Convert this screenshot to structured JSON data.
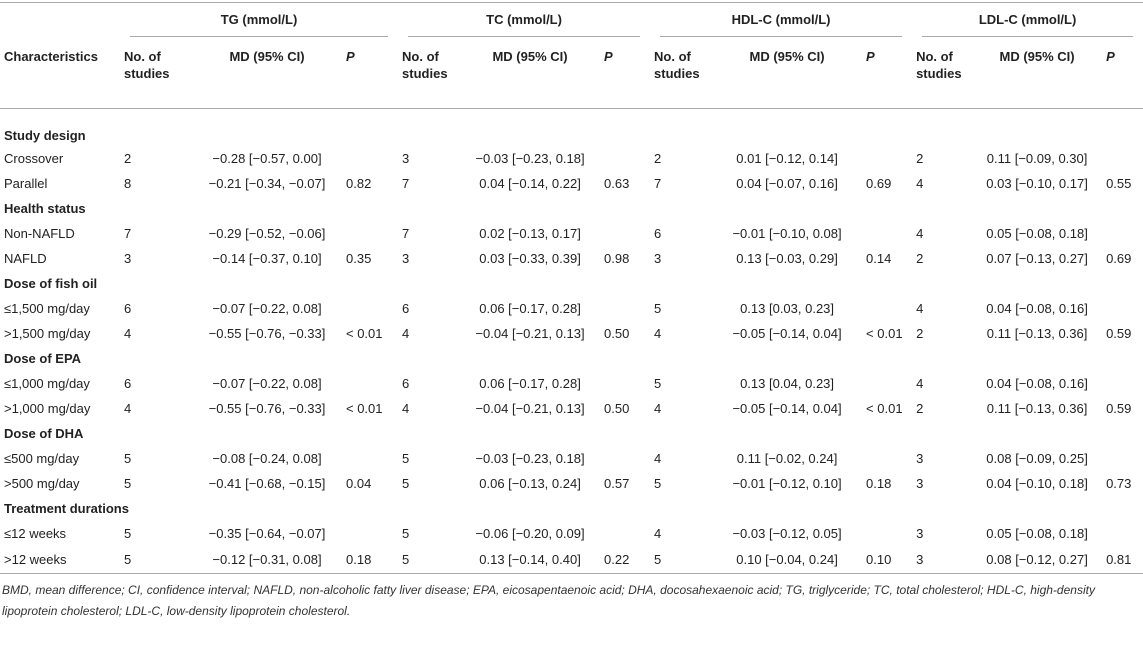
{
  "table": {
    "groups": [
      "TG (mmol/L)",
      "TC (mmol/L)",
      "HDL-C (mmol/L)",
      "LDL-C (mmol/L)"
    ],
    "columns": [
      "Characteristics",
      "No. of studies",
      "MD (95% CI)",
      "P"
    ],
    "sections": [
      {
        "title": "Study design",
        "rows": [
          {
            "label": "Crossover",
            "cells": [
              "2",
              "−0.28 [−0.57, 0.00]",
              null,
              "3",
              "−0.03 [−0.23, 0.18]",
              null,
              "2",
              "0.01 [−0.12, 0.14]",
              null,
              "2",
              "0.11 [−0.09, 0.30]",
              null
            ]
          },
          {
            "label": "Parallel",
            "cells": [
              "8",
              "−0.21 [−0.34, −0.07]",
              "0.82",
              "7",
              "0.04 [−0.14, 0.22]",
              "0.63",
              "7",
              "0.04 [−0.07, 0.16]",
              "0.69",
              "4",
              "0.03 [−0.10, 0.17]",
              "0.55"
            ]
          }
        ]
      },
      {
        "title": "Health status",
        "rows": [
          {
            "label": "Non-NAFLD",
            "cells": [
              "7",
              "−0.29 [−0.52, −0.06]",
              null,
              "7",
              "0.02 [−0.13, 0.17]",
              null,
              "6",
              "−0.01 [−0.10, 0.08]",
              null,
              "4",
              "0.05 [−0.08, 0.18]",
              null
            ]
          },
          {
            "label": "NAFLD",
            "cells": [
              "3",
              "−0.14 [−0.37, 0.10]",
              "0.35",
              "3",
              "0.03 [−0.33, 0.39]",
              "0.98",
              "3",
              "0.13 [−0.03, 0.29]",
              "0.14",
              "2",
              "0.07 [−0.13, 0.27]",
              "0.69"
            ]
          }
        ]
      },
      {
        "title": "Dose of fish oil",
        "rows": [
          {
            "label": "≤1,500 mg/day",
            "cells": [
              "6",
              "−0.07 [−0.22, 0.08]",
              null,
              "6",
              "0.06 [−0.17, 0.28]",
              null,
              "5",
              "0.13 [0.03, 0.23]",
              null,
              "4",
              "0.04 [−0.08, 0.16]",
              null
            ]
          },
          {
            "label": ">1,500 mg/day",
            "cells": [
              "4",
              "−0.55 [−0.76, −0.33]",
              "< 0.01",
              "4",
              "−0.04 [−0.21, 0.13]",
              "0.50",
              "4",
              "−0.05 [−0.14, 0.04]",
              "< 0.01",
              "2",
              "0.11 [−0.13, 0.36]",
              "0.59"
            ]
          }
        ]
      },
      {
        "title": "Dose of EPA",
        "rows": [
          {
            "label": "≤1,000 mg/day",
            "cells": [
              "6",
              "−0.07 [−0.22, 0.08]",
              null,
              "6",
              "0.06 [−0.17, 0.28]",
              null,
              "5",
              "0.13 [0.04, 0.23]",
              null,
              "4",
              "0.04 [−0.08, 0.16]",
              null
            ]
          },
          {
            "label": ">1,000 mg/day",
            "cells": [
              "4",
              "−0.55 [−0.76, −0.33]",
              "< 0.01",
              "4",
              "−0.04 [−0.21, 0.13]",
              "0.50",
              "4",
              "−0.05 [−0.14, 0.04]",
              "< 0.01",
              "2",
              "0.11 [−0.13, 0.36]",
              "0.59"
            ]
          }
        ]
      },
      {
        "title": "Dose of DHA",
        "rows": [
          {
            "label": "≤500 mg/day",
            "cells": [
              "5",
              "−0.08 [−0.24, 0.08]",
              null,
              "5",
              "−0.03 [−0.23, 0.18]",
              null,
              "4",
              "0.11 [−0.02, 0.24]",
              null,
              "3",
              "0.08 [−0.09, 0.25]",
              null
            ]
          },
          {
            "label": ">500 mg/day",
            "cells": [
              "5",
              "−0.41 [−0.68, −0.15]",
              "0.04",
              "5",
              "0.06 [−0.13, 0.24]",
              "0.57",
              "5",
              "−0.01 [−0.12, 0.10]",
              "0.18",
              "3",
              "0.04 [−0.10, 0.18]",
              "0.73"
            ]
          }
        ]
      },
      {
        "title": "Treatment durations",
        "rows": [
          {
            "label": "≤12 weeks",
            "cells": [
              "5",
              "−0.35 [−0.64, −0.07]",
              null,
              "5",
              "−0.06 [−0.20, 0.09]",
              null,
              "4",
              "−0.03 [−0.12, 0.05]",
              null,
              "3",
              "0.05 [−0.08, 0.18]",
              null
            ]
          },
          {
            "label": ">12 weeks",
            "cells": [
              "5",
              "−0.12 [−0.31, 0.08]",
              "0.18",
              "5",
              "0.13 [−0.14, 0.40]",
              "0.22",
              "5",
              "0.10 [−0.04, 0.24]",
              "0.10",
              "3",
              "0.08 [−0.12, 0.27]",
              "0.81"
            ]
          }
        ]
      }
    ]
  },
  "footnote": "BMD, mean difference; CI, confidence interval; NAFLD, non-alcoholic fatty liver disease; EPA, eicosapentaenoic acid; DHA, docosahexaenoic acid; TG, triglyceride; TC, total cholesterol; HDL-C, high-density lipoprotein cholesterol; LDL-C, low-density lipoprotein cholesterol."
}
